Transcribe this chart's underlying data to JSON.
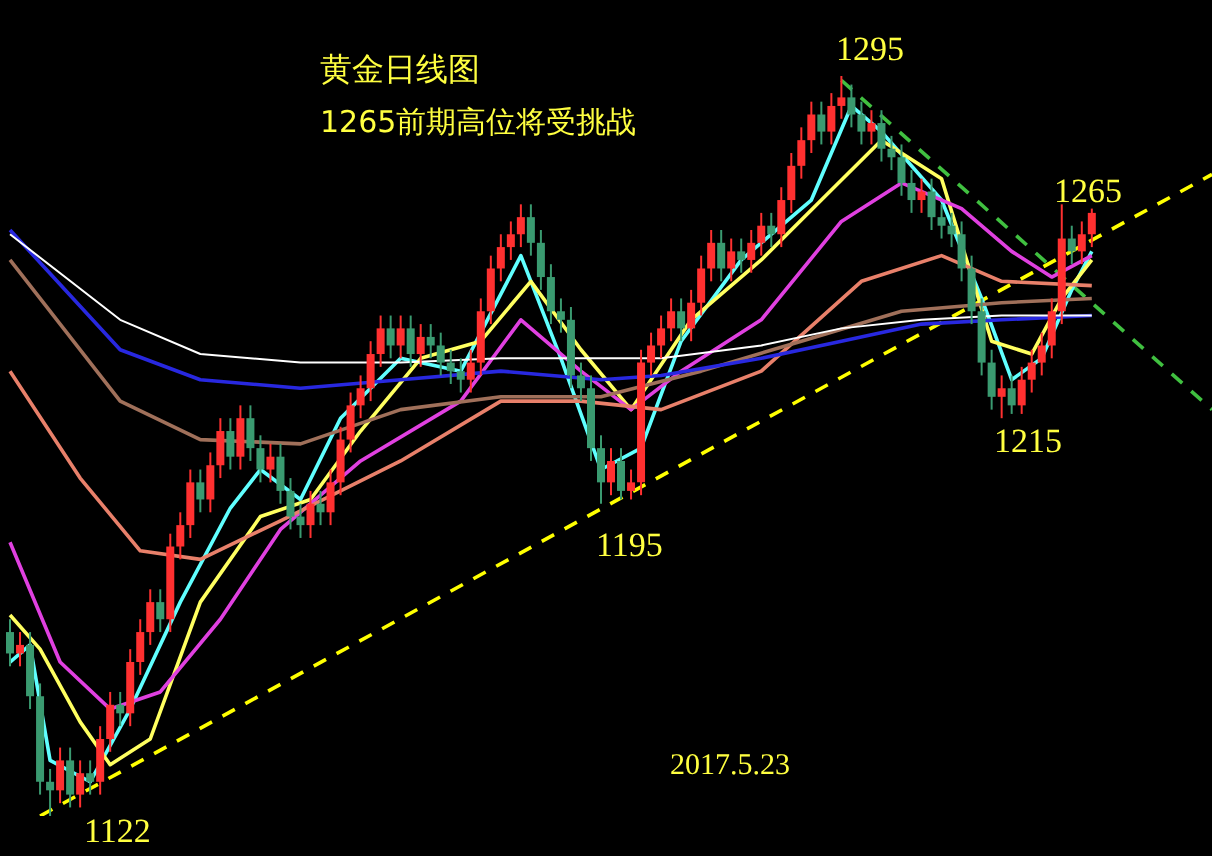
{
  "chart_data": {
    "type": "candlestick",
    "title": "黄金日线图",
    "subtitle": "1265前期高位将受挑战",
    "annotations": [
      "2017.5.23",
      "1295",
      "1265",
      "1215",
      "1195",
      "1122"
    ],
    "categories": [
      null,
      null,
      null,
      null,
      null,
      null,
      null,
      null,
      null,
      null,
      null,
      null,
      null,
      null,
      null,
      null,
      null,
      null,
      null,
      null,
      null,
      null,
      null,
      null,
      null,
      null,
      null,
      null,
      null,
      null,
      null,
      null,
      null,
      null,
      null,
      null,
      null,
      null,
      null,
      null,
      null,
      null,
      null,
      null,
      null,
      null,
      null,
      null,
      null,
      null,
      null,
      null,
      null,
      null,
      null,
      null,
      null,
      null,
      null,
      null,
      null,
      null,
      null,
      null,
      null,
      null,
      null,
      null,
      null,
      null,
      null,
      null,
      null,
      null,
      null,
      null,
      null,
      null,
      null,
      null,
      null,
      null,
      null,
      null,
      null,
      null,
      null,
      null,
      null,
      null,
      null,
      null,
      null,
      null,
      null,
      null,
      null,
      null,
      null,
      null,
      null,
      null,
      null,
      null,
      null,
      null,
      null,
      null,
      null,
      null,
      null,
      null,
      null,
      null,
      null,
      null,
      null,
      null,
      null,
      null,
      null
    ],
    "ohlc": [
      [
        1165,
        1168,
        1157,
        1160
      ],
      [
        1160,
        1165,
        1157,
        1162
      ],
      [
        1162,
        1165,
        1147,
        1150
      ],
      [
        1150,
        1153,
        1127,
        1130
      ],
      [
        1130,
        1133,
        1122,
        1128
      ],
      [
        1128,
        1138,
        1125,
        1135
      ],
      [
        1135,
        1138,
        1124,
        1127
      ],
      [
        1127,
        1135,
        1124,
        1132
      ],
      [
        1132,
        1135,
        1127,
        1130
      ],
      [
        1130,
        1143,
        1127,
        1140
      ],
      [
        1140,
        1151,
        1137,
        1148
      ],
      [
        1148,
        1151,
        1143,
        1146
      ],
      [
        1146,
        1161,
        1143,
        1158
      ],
      [
        1158,
        1168,
        1155,
        1165
      ],
      [
        1165,
        1175,
        1162,
        1172
      ],
      [
        1172,
        1175,
        1165,
        1168
      ],
      [
        1168,
        1188,
        1165,
        1185
      ],
      [
        1185,
        1193,
        1182,
        1190
      ],
      [
        1190,
        1203,
        1187,
        1200
      ],
      [
        1200,
        1203,
        1193,
        1196
      ],
      [
        1196,
        1207,
        1193,
        1204
      ],
      [
        1204,
        1215,
        1201,
        1212
      ],
      [
        1212,
        1215,
        1203,
        1206
      ],
      [
        1206,
        1218,
        1203,
        1215
      ],
      [
        1215,
        1218,
        1205,
        1208
      ],
      [
        1208,
        1211,
        1200,
        1203
      ],
      [
        1203,
        1209,
        1200,
        1206
      ],
      [
        1206,
        1209,
        1195,
        1198
      ],
      [
        1198,
        1201,
        1189,
        1192
      ],
      [
        1192,
        1195,
        1187,
        1190
      ],
      [
        1190,
        1198,
        1187,
        1195
      ],
      [
        1195,
        1198,
        1190,
        1193
      ],
      [
        1193,
        1203,
        1190,
        1200
      ],
      [
        1200,
        1213,
        1197,
        1210
      ],
      [
        1210,
        1221,
        1207,
        1218
      ],
      [
        1218,
        1225,
        1215,
        1222
      ],
      [
        1222,
        1233,
        1219,
        1230
      ],
      [
        1230,
        1239,
        1227,
        1236
      ],
      [
        1236,
        1239,
        1229,
        1232
      ],
      [
        1232,
        1239,
        1229,
        1236
      ],
      [
        1236,
        1239,
        1227,
        1230
      ],
      [
        1230,
        1237,
        1227,
        1234
      ],
      [
        1234,
        1237,
        1229,
        1232
      ],
      [
        1232,
        1235,
        1225,
        1228
      ],
      [
        1228,
        1231,
        1223,
        1226
      ],
      [
        1226,
        1229,
        1221,
        1224
      ],
      [
        1224,
        1231,
        1221,
        1228
      ],
      [
        1228,
        1243,
        1225,
        1240
      ],
      [
        1240,
        1253,
        1237,
        1250
      ],
      [
        1250,
        1258,
        1247,
        1255
      ],
      [
        1255,
        1261,
        1252,
        1258
      ],
      [
        1258,
        1265,
        1255,
        1262
      ],
      [
        1262,
        1265,
        1253,
        1256
      ],
      [
        1256,
        1259,
        1245,
        1248
      ],
      [
        1248,
        1251,
        1237,
        1240
      ],
      [
        1240,
        1243,
        1235,
        1238
      ],
      [
        1238,
        1241,
        1222,
        1225
      ],
      [
        1225,
        1228,
        1219,
        1222
      ],
      [
        1222,
        1225,
        1205,
        1208
      ],
      [
        1208,
        1211,
        1195,
        1200
      ],
      [
        1200,
        1208,
        1197,
        1205
      ],
      [
        1205,
        1208,
        1196,
        1198
      ],
      [
        1198,
        1203,
        1196,
        1200
      ],
      [
        1200,
        1231,
        1197,
        1228
      ],
      [
        1228,
        1235,
        1225,
        1232
      ],
      [
        1232,
        1239,
        1229,
        1236
      ],
      [
        1236,
        1243,
        1233,
        1240
      ],
      [
        1240,
        1243,
        1233,
        1236
      ],
      [
        1236,
        1245,
        1233,
        1242
      ],
      [
        1242,
        1253,
        1239,
        1250
      ],
      [
        1250,
        1259,
        1247,
        1256
      ],
      [
        1256,
        1259,
        1247,
        1250
      ],
      [
        1250,
        1257,
        1247,
        1254
      ],
      [
        1254,
        1257,
        1249,
        1252
      ],
      [
        1252,
        1259,
        1249,
        1256
      ],
      [
        1256,
        1263,
        1253,
        1260
      ],
      [
        1260,
        1263,
        1255,
        1258
      ],
      [
        1258,
        1269,
        1255,
        1266
      ],
      [
        1266,
        1277,
        1263,
        1274
      ],
      [
        1274,
        1283,
        1271,
        1280
      ],
      [
        1280,
        1289,
        1277,
        1286
      ],
      [
        1286,
        1289,
        1279,
        1282
      ],
      [
        1282,
        1291,
        1279,
        1288
      ],
      [
        1288,
        1295,
        1285,
        1290
      ],
      [
        1290,
        1293,
        1283,
        1286
      ],
      [
        1286,
        1289,
        1279,
        1282
      ],
      [
        1282,
        1287,
        1279,
        1284
      ],
      [
        1284,
        1287,
        1275,
        1278
      ],
      [
        1278,
        1281,
        1273,
        1276
      ],
      [
        1276,
        1279,
        1267,
        1270
      ],
      [
        1270,
        1273,
        1263,
        1266
      ],
      [
        1266,
        1271,
        1263,
        1268
      ],
      [
        1268,
        1271,
        1259,
        1262
      ],
      [
        1262,
        1265,
        1257,
        1260
      ],
      [
        1260,
        1263,
        1255,
        1258
      ],
      [
        1258,
        1261,
        1247,
        1250
      ],
      [
        1250,
        1253,
        1237,
        1240
      ],
      [
        1240,
        1243,
        1225,
        1228
      ],
      [
        1228,
        1231,
        1217,
        1220
      ],
      [
        1220,
        1225,
        1215,
        1222
      ],
      [
        1222,
        1225,
        1216,
        1218
      ],
      [
        1218,
        1227,
        1216,
        1224
      ],
      [
        1224,
        1231,
        1221,
        1228
      ],
      [
        1228,
        1235,
        1225,
        1232
      ],
      [
        1232,
        1243,
        1229,
        1240
      ],
      [
        1240,
        1265,
        1237,
        1257
      ],
      [
        1257,
        1260,
        1251,
        1254
      ],
      [
        1254,
        1261,
        1251,
        1258
      ],
      [
        1258,
        1264,
        1255,
        1263
      ],
      null,
      null,
      null,
      null,
      null,
      null,
      null,
      null,
      null,
      null,
      null,
      null
    ],
    "colors": [
      "#3a9a70",
      "#ff3030",
      "#3a9a70",
      "#3a9a70",
      "#3a9a70",
      "#ff3030",
      "#3a9a70",
      "#ff3030",
      "#3a9a70",
      "#ff3030",
      "#ff3030",
      "#3a9a70",
      "#ff3030",
      "#ff3030",
      "#ff3030",
      "#3a9a70",
      "#ff3030",
      "#ff3030",
      "#ff3030",
      "#3a9a70",
      "#ff3030",
      "#ff3030",
      "#3a9a70",
      "#ff3030",
      "#3a9a70",
      "#3a9a70",
      "#ff3030",
      "#3a9a70",
      "#3a9a70",
      "#3a9a70",
      "#ff3030",
      "#3a9a70",
      "#ff3030",
      "#ff3030",
      "#ff3030",
      "#ff3030",
      "#ff3030",
      "#ff3030",
      "#3a9a70",
      "#ff3030",
      "#3a9a70",
      "#ff3030",
      "#3a9a70",
      "#3a9a70",
      "#3a9a70",
      "#3a9a70",
      "#ff3030",
      "#ff3030",
      "#ff3030",
      "#ff3030",
      "#ff3030",
      "#ff3030",
      "#3a9a70",
      "#3a9a70",
      "#3a9a70",
      "#3a9a70",
      "#3a9a70",
      "#3a9a70",
      "#3a9a70",
      "#3a9a70",
      "#ff3030",
      "#3a9a70",
      "#ff3030",
      "#ff3030",
      "#ff3030",
      "#ff3030",
      "#ff3030",
      "#3a9a70",
      "#ff3030",
      "#ff3030",
      "#ff3030",
      "#3a9a70",
      "#ff3030",
      "#3a9a70",
      "#ff3030",
      "#ff3030",
      "#3a9a70",
      "#ff3030",
      "#ff3030",
      "#ff3030",
      "#ff3030",
      "#3a9a70",
      "#ff3030",
      "#ff3030",
      "#3a9a70",
      "#3a9a70",
      "#ff3030",
      "#3a9a70",
      "#3a9a70",
      "#3a9a70",
      "#3a9a70",
      "#ff3030",
      "#3a9a70",
      "#3a9a70",
      "#3a9a70",
      "#3a9a70",
      "#3a9a70",
      "#3a9a70",
      "#3a9a70",
      "#ff3030",
      "#3a9a70",
      "#ff3030",
      "#ff3030",
      "#ff3030",
      "#ff3030",
      "#ff3030",
      "#3a9a70",
      "#ff3030",
      "#ff3030",
      null,
      null,
      null,
      null,
      null,
      null,
      null,
      null,
      null,
      null,
      null,
      null
    ],
    "series": [
      {
        "type": "line",
        "color": "#ffffff",
        "values": [
          1258,
          null,
          null,
          null,
          null,
          null,
          null,
          null,
          null,
          null,
          null,
          1238,
          null,
          null,
          null,
          null,
          null,
          null,
          null,
          1230,
          null,
          null,
          null,
          null,
          null,
          null,
          null,
          null,
          null,
          1228,
          null,
          null,
          null,
          null,
          null,
          null,
          null,
          null,
          null,
          1228,
          null,
          null,
          null,
          null,
          null,
          null,
          null,
          null,
          null,
          1229,
          null,
          null,
          null,
          null,
          null,
          null,
          null,
          null,
          null,
          1229,
          null,
          null,
          null,
          null,
          null,
          1229,
          null,
          null,
          null,
          null,
          null,
          null,
          null,
          null,
          null,
          1232,
          null,
          null,
          null,
          null,
          null,
          null,
          null,
          1236,
          null,
          null,
          null,
          null,
          null,
          null,
          null,
          1238,
          null,
          null,
          null,
          null,
          null,
          null,
          null,
          1239,
          null,
          null,
          null,
          null,
          null,
          null,
          null,
          null,
          1239,
          null,
          null,
          null,
          null,
          null,
          null,
          null,
          null,
          null,
          null,
          null,
          null
        ]
      },
      {
        "type": "line",
        "color": "#2828e0",
        "values": [
          1259,
          null,
          null,
          null,
          null,
          null,
          null,
          null,
          null,
          null,
          null,
          1231,
          null,
          null,
          null,
          null,
          null,
          null,
          null,
          1224,
          null,
          null,
          null,
          null,
          null,
          null,
          null,
          null,
          null,
          1222,
          null,
          null,
          null,
          null,
          null,
          null,
          null,
          null,
          null,
          1224,
          null,
          null,
          null,
          null,
          null,
          null,
          null,
          null,
          null,
          1226,
          null,
          null,
          null,
          null,
          null,
          null,
          null,
          null,
          null,
          1224,
          null,
          null,
          null,
          null,
          null,
          1225,
          null,
          null,
          null,
          null,
          null,
          null,
          null,
          null,
          null,
          1229,
          null,
          null,
          null,
          null,
          null,
          null,
          null,
          1233,
          null,
          null,
          null,
          null,
          null,
          null,
          null,
          1237,
          null,
          null,
          null,
          null,
          null,
          null,
          null,
          1238,
          null,
          null,
          null,
          null,
          null,
          null,
          null,
          null,
          1239,
          null,
          null,
          null,
          null,
          null,
          null,
          null,
          null,
          null,
          null,
          null,
          null
        ]
      },
      {
        "type": "line",
        "color": "#a0705a",
        "values": [
          1252,
          null,
          null,
          null,
          null,
          null,
          null,
          null,
          null,
          null,
          null,
          1219,
          null,
          null,
          null,
          null,
          null,
          null,
          null,
          1210,
          null,
          null,
          null,
          null,
          null,
          null,
          null,
          null,
          null,
          1209,
          null,
          null,
          null,
          null,
          null,
          null,
          null,
          null,
          null,
          1217,
          null,
          null,
          null,
          null,
          null,
          null,
          null,
          null,
          null,
          1220,
          null,
          null,
          null,
          null,
          null,
          null,
          null,
          null,
          null,
          1220,
          null,
          null,
          null,
          null,
          null,
          null,
          null,
          null,
          null,
          1226,
          null,
          null,
          null,
          null,
          null,
          null,
          null,
          null,
          null,
          1233,
          null,
          null,
          null,
          null,
          null,
          null,
          null,
          null,
          null,
          1240,
          null,
          null,
          null,
          null,
          null,
          null,
          null,
          null,
          null,
          1242,
          null,
          null,
          null,
          null,
          null,
          null,
          null,
          null,
          1243,
          null,
          null,
          null,
          null,
          null,
          null,
          null,
          null,
          null,
          null,
          null,
          null
        ]
      },
      {
        "type": "line",
        "color": "#e8806a",
        "values": [
          1226,
          null,
          null,
          null,
          null,
          null,
          null,
          1201,
          null,
          null,
          null,
          null,
          null,
          1184,
          null,
          null,
          null,
          null,
          null,
          1182,
          null,
          null,
          null,
          null,
          null,
          null,
          null,
          1191,
          null,
          null,
          null,
          null,
          null,
          null,
          null,
          null,
          null,
          null,
          null,
          1205,
          null,
          null,
          null,
          null,
          null,
          null,
          null,
          null,
          null,
          1219,
          null,
          null,
          null,
          null,
          null,
          null,
          null,
          1219,
          null,
          null,
          null,
          null,
          null,
          null,
          null,
          1217,
          null,
          null,
          null,
          null,
          null,
          null,
          null,
          null,
          null,
          1226,
          null,
          null,
          null,
          null,
          null,
          null,
          null,
          null,
          null,
          1247,
          null,
          null,
          null,
          null,
          null,
          null,
          null,
          1253,
          null,
          null,
          null,
          null,
          null,
          1247,
          null,
          null,
          null,
          null,
          null,
          null,
          null,
          null,
          1246,
          null,
          null,
          null,
          null,
          null,
          null,
          null,
          null,
          null,
          null,
          null,
          null
        ]
      },
      {
        "type": "line",
        "color": "#e040e0",
        "values": [
          1186,
          null,
          null,
          null,
          null,
          1158,
          null,
          null,
          null,
          null,
          1147,
          null,
          null,
          null,
          null,
          1151,
          null,
          null,
          null,
          null,
          null,
          1168,
          null,
          null,
          null,
          null,
          null,
          1189,
          null,
          null,
          null,
          null,
          null,
          null,
          null,
          1205,
          null,
          null,
          null,
          null,
          null,
          null,
          null,
          null,
          null,
          1219,
          null,
          null,
          null,
          null,
          null,
          1238,
          null,
          null,
          null,
          null,
          null,
          1226,
          null,
          null,
          null,
          null,
          1217,
          null,
          null,
          null,
          null,
          1226,
          null,
          null,
          null,
          null,
          null,
          null,
          null,
          1238,
          null,
          null,
          null,
          null,
          null,
          null,
          null,
          1261,
          null,
          null,
          null,
          null,
          null,
          1270,
          null,
          null,
          null,
          null,
          null,
          1264,
          null,
          null,
          null,
          null,
          1254,
          null,
          null,
          null,
          1248,
          null,
          null,
          null,
          1253,
          null,
          null,
          null,
          null,
          null,
          null,
          null,
          null,
          null,
          null,
          null,
          null
        ]
      },
      {
        "type": "line",
        "color": "#ffff60",
        "values": [
          1169,
          null,
          null,
          1161,
          null,
          null,
          null,
          1144,
          null,
          null,
          1134,
          null,
          null,
          null,
          1140,
          null,
          null,
          null,
          null,
          1172,
          null,
          null,
          null,
          null,
          null,
          1192,
          null,
          null,
          null,
          null,
          1196,
          null,
          null,
          null,
          null,
          1212,
          null,
          null,
          null,
          null,
          null,
          1229,
          null,
          null,
          null,
          null,
          null,
          1233,
          null,
          null,
          null,
          null,
          1247,
          null,
          null,
          null,
          null,
          1231,
          null,
          null,
          null,
          null,
          1217,
          null,
          null,
          null,
          null,
          null,
          1238,
          null,
          null,
          null,
          null,
          null,
          null,
          1252,
          null,
          null,
          null,
          null,
          null,
          1266,
          null,
          null,
          null,
          null,
          null,
          1280,
          null,
          null,
          null,
          null,
          null,
          1271,
          null,
          null,
          null,
          null,
          1233,
          null,
          null,
          null,
          1230,
          null,
          null,
          1243,
          null,
          null,
          1252,
          null,
          null,
          null,
          null,
          null,
          null,
          null,
          null,
          null,
          null,
          null,
          null
        ]
      },
      {
        "type": "line",
        "color": "#60ffff",
        "values": [
          1158,
          null,
          1162,
          null,
          1135,
          null,
          null,
          null,
          1130,
          null,
          null,
          null,
          1147,
          null,
          null,
          null,
          null,
          1172,
          null,
          null,
          null,
          null,
          1194,
          null,
          null,
          1203,
          null,
          null,
          null,
          1196,
          null,
          null,
          null,
          1215,
          null,
          null,
          null,
          null,
          null,
          1229,
          null,
          null,
          null,
          null,
          null,
          1226,
          null,
          null,
          null,
          null,
          null,
          1253,
          null,
          null,
          null,
          1229,
          null,
          null,
          null,
          1203,
          null,
          null,
          null,
          1208,
          null,
          null,
          null,
          1233,
          null,
          null,
          null,
          null,
          null,
          1252,
          null,
          null,
          null,
          null,
          null,
          null,
          1266,
          null,
          null,
          null,
          1288,
          null,
          null,
          1282,
          null,
          null,
          null,
          null,
          null,
          1266,
          null,
          null,
          null,
          1243,
          null,
          null,
          1224,
          null,
          null,
          1229,
          null,
          null,
          1245,
          null,
          1254,
          null,
          null,
          null,
          null,
          null,
          null,
          null,
          null,
          null,
          null,
          null,
          null
        ]
      },
      {
        "type": "line",
        "color": "#ffff00",
        "line_style": "dashed",
        "values": [
          null,
          null,
          null,
          1122,
          null,
          null,
          null,
          null,
          null,
          null,
          null,
          null,
          null,
          null,
          null,
          null,
          null,
          null,
          null,
          null,
          null,
          null,
          null,
          null,
          null,
          null,
          null,
          null,
          null,
          null,
          null,
          null,
          null,
          null,
          null,
          null,
          null,
          null,
          null,
          null,
          null,
          null,
          null,
          null,
          null,
          null,
          null,
          null,
          null,
          null,
          null,
          null,
          null,
          null,
          null,
          null,
          null,
          null,
          null,
          null,
          null,
          null,
          null,
          null,
          null,
          null,
          null,
          null,
          null,
          null,
          null,
          null,
          null,
          null,
          null,
          null,
          null,
          null,
          null,
          null,
          null,
          null,
          null,
          null,
          null,
          null,
          null,
          null,
          null,
          null,
          null,
          null,
          null,
          null,
          null,
          null,
          null,
          null,
          null,
          null,
          null,
          null,
          null,
          null,
          null,
          null,
          null,
          null,
          null,
          null,
          null,
          null,
          null,
          null,
          null,
          null,
          null,
          null,
          null,
          null,
          1272
        ]
      },
      {
        "type": "line",
        "color": "#40c040",
        "line_style": "dashed",
        "values": [
          null,
          null,
          null,
          null,
          null,
          null,
          null,
          null,
          null,
          null,
          null,
          null,
          null,
          null,
          null,
          null,
          null,
          null,
          null,
          null,
          null,
          null,
          null,
          null,
          null,
          null,
          null,
          null,
          null,
          null,
          null,
          null,
          null,
          null,
          null,
          null,
          null,
          null,
          null,
          null,
          null,
          null,
          null,
          null,
          null,
          null,
          null,
          null,
          null,
          null,
          null,
          null,
          null,
          null,
          null,
          null,
          null,
          null,
          null,
          null,
          null,
          null,
          null,
          null,
          null,
          null,
          null,
          null,
          null,
          null,
          null,
          null,
          null,
          null,
          null,
          null,
          null,
          null,
          null,
          null,
          null,
          null,
          null,
          1294,
          null,
          null,
          null,
          null,
          null,
          null,
          null,
          null,
          null,
          null,
          null,
          null,
          null,
          null,
          null,
          null,
          null,
          null,
          null,
          null,
          null,
          null,
          null,
          null,
          null,
          null,
          null,
          null,
          null,
          null,
          null,
          null,
          null,
          null,
          null,
          null,
          1217
        ]
      }
    ],
    "legend": false,
    "marker": "none"
  }
}
